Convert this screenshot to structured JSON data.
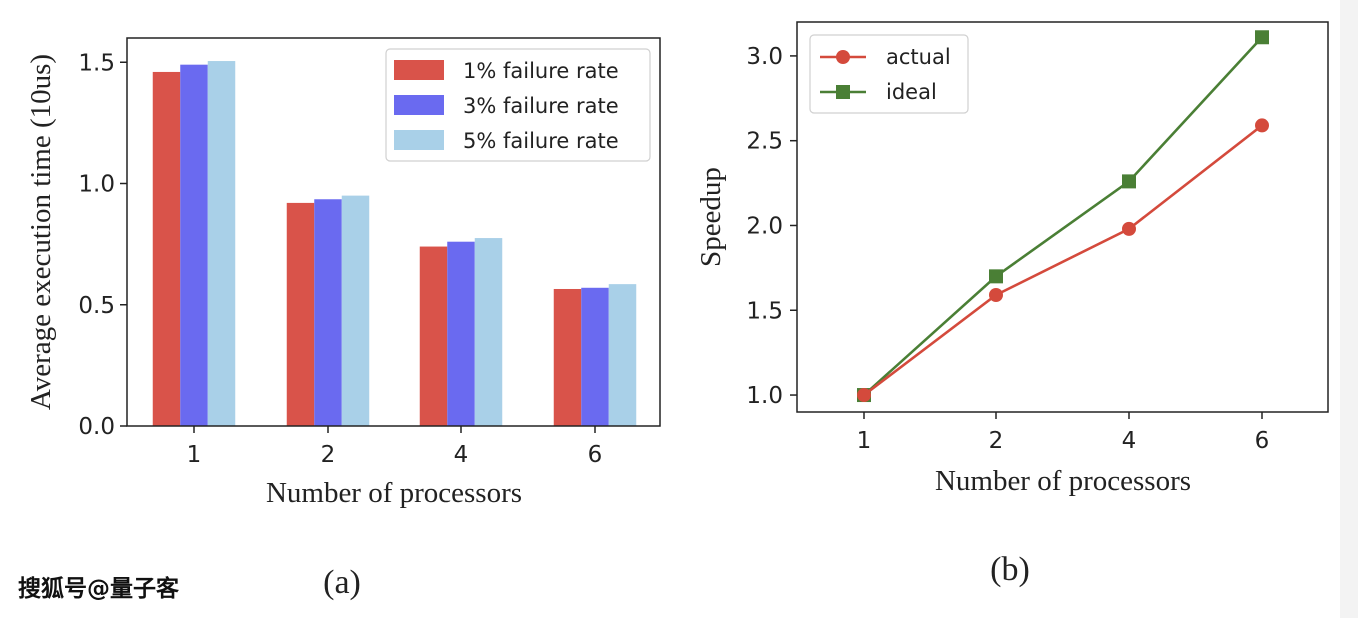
{
  "chart_data": [
    {
      "type": "bar",
      "categories": [
        "1",
        "2",
        "4",
        "6"
      ],
      "series": [
        {
          "name": "1% failure rate",
          "values": [
            1.46,
            0.92,
            0.74,
            0.565
          ],
          "color": "#d9534a"
        },
        {
          "name": "3% failure rate",
          "values": [
            1.49,
            0.935,
            0.76,
            0.57
          ],
          "color": "#6a6af0"
        },
        {
          "name": "5% failure rate",
          "values": [
            1.505,
            0.95,
            0.775,
            0.585
          ],
          "color": "#a9d0e8"
        }
      ],
      "xlabel": "Number of processors",
      "ylabel": "Average execution time (10us)",
      "ylim": [
        0,
        1.6
      ],
      "yticks": [
        "0.0",
        "0.5",
        "1.0",
        "1.5"
      ],
      "legend": "top-right",
      "caption": "(a)"
    },
    {
      "type": "line",
      "x": [
        "1",
        "2",
        "4",
        "6"
      ],
      "series": [
        {
          "name": "actual",
          "values": [
            1.0,
            1.59,
            1.98,
            2.59
          ],
          "color": "#d44a3c",
          "marker": "circle"
        },
        {
          "name": "ideal",
          "values": [
            1.0,
            1.7,
            2.26,
            3.11
          ],
          "color": "#4a7f35",
          "marker": "square"
        }
      ],
      "xlabel": "Number of processors",
      "ylabel": "Speedup",
      "ylim": [
        0.9,
        3.2
      ],
      "yticks": [
        "1.0",
        "1.5",
        "2.0",
        "2.5",
        "3.0"
      ],
      "legend": "top-left",
      "caption": "(b)"
    }
  ],
  "watermark": "搜狐号@量子客"
}
